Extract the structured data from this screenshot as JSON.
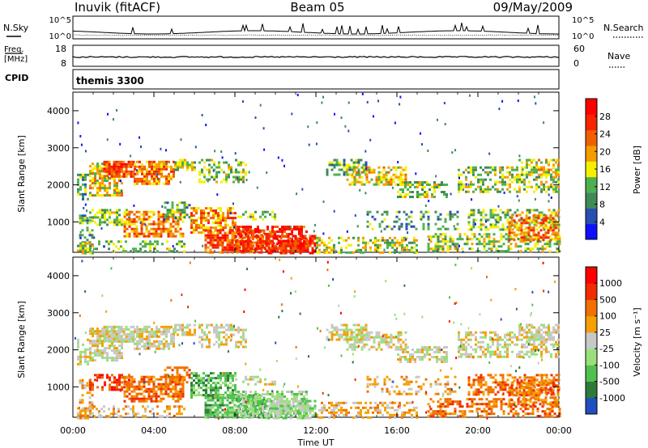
{
  "header": {
    "station": "Inuvik (fitACF)",
    "beam": "Beam 05",
    "date": "09/May/2009"
  },
  "colors": {
    "power_scale": [
      "#1010ff",
      "#2a4fb0",
      "#3f8a57",
      "#4fb04f",
      "#f5f000",
      "#f59c00",
      "#f06000",
      "#f52500",
      "#ff0000"
    ],
    "velocity_scale": [
      "#1f4fc0",
      "#2f7a3a",
      "#50c050",
      "#9ae07a",
      "#c8c8c8",
      "#f5a000",
      "#f07000",
      "#f02c00",
      "#ff0000"
    ]
  },
  "chart_data": [
    {
      "type": "line",
      "panel": "noise",
      "left_label": "N.Sky",
      "left_ticks": [
        "10^5",
        "10^0"
      ],
      "right_label": "N.Search",
      "right_ticks": [
        "10^5",
        "10^0"
      ]
    },
    {
      "type": "line",
      "panel": "frequency",
      "left_label": [
        "Freq.",
        "[MHz]"
      ],
      "left_ticks": [
        "18",
        "8"
      ],
      "left_ylim": [
        8,
        18
      ],
      "right_label": "Nave",
      "right_ticks": [
        "60",
        "0"
      ],
      "right_ylim": [
        0,
        60
      ]
    },
    {
      "type": "table",
      "panel": "cpid",
      "label": "CPID",
      "value": "themis 3300"
    },
    {
      "type": "heatmap",
      "panel": "power",
      "ylabel": "Slant Range [km]",
      "yticks": [
        "1000",
        "2000",
        "3000",
        "4000"
      ],
      "ylim": [
        180,
        4500
      ],
      "colorbar_label": "Power [dB]",
      "colorbar_ticks": [
        "4",
        "8",
        "12",
        "16",
        "20",
        "24",
        "28"
      ],
      "colorbar_range": [
        0,
        30
      ]
    },
    {
      "type": "heatmap",
      "panel": "velocity",
      "ylabel": "Slant Range [km]",
      "yticks": [
        "1000",
        "2000",
        "3000",
        "4000"
      ],
      "ylim": [
        180,
        4500
      ],
      "colorbar_label": "Velocity [m s⁻¹]",
      "colorbar_ticks": [
        "1000",
        "500",
        "100",
        "25",
        "-25",
        "-100",
        "-500",
        "-1000"
      ]
    },
    {
      "type": "axis",
      "panel": "time",
      "xlabel": "Time UT",
      "xticks": [
        "00:00",
        "04:00",
        "08:00",
        "12:00",
        "16:00",
        "20:00",
        "00:00"
      ],
      "xlim": [
        0,
        24
      ]
    }
  ]
}
